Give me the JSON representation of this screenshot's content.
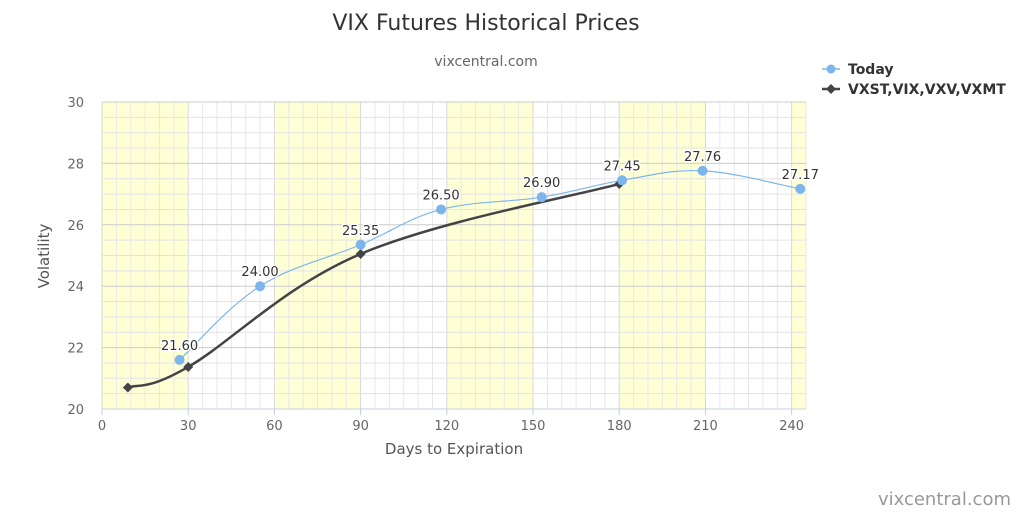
{
  "chart_data": {
    "type": "line",
    "title": "VIX Futures Historical Prices",
    "subtitle": "vixcentral.com",
    "xlabel": "Days to Expiration",
    "ylabel": "Volatility",
    "xlim": [
      0,
      245
    ],
    "ylim": [
      20,
      30
    ],
    "x_ticks": [
      "0",
      "30",
      "60",
      "90",
      "120",
      "150",
      "180",
      "210",
      "240"
    ],
    "y_ticks": [
      "20",
      "22",
      "24",
      "26",
      "28",
      "30"
    ],
    "grid": true,
    "legend_position": "top-right",
    "series": [
      {
        "name": "Today",
        "color": "#7cb5ec",
        "marker": "circle",
        "x": [
          27,
          55,
          90,
          118,
          153,
          181,
          209,
          243
        ],
        "y": [
          21.6,
          24.0,
          25.35,
          26.5,
          26.9,
          27.45,
          27.76,
          27.17
        ],
        "labels": [
          "21.60",
          "24.00",
          "25.35",
          "26.50",
          "26.90",
          "27.45",
          "27.76",
          "27.17"
        ]
      },
      {
        "name": "VXST,VIX,VXV,VXMT",
        "color": "#434348",
        "marker": "diamond",
        "x": [
          9,
          30,
          90,
          180
        ],
        "y": [
          20.7,
          21.37,
          25.05,
          27.33
        ]
      }
    ],
    "credit": "vixcentral.com"
  }
}
